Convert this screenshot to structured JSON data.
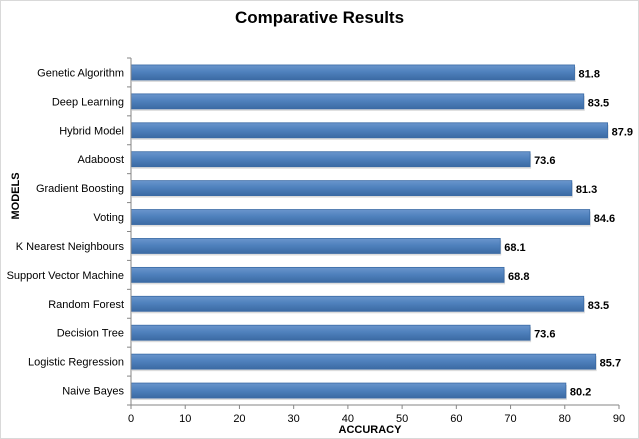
{
  "chart_data": {
    "type": "bar",
    "orientation": "horizontal",
    "title": "Comparative Results",
    "xlabel": "ACCURACY",
    "ylabel": "MODELS",
    "xlim": [
      0,
      90
    ],
    "xticks": [
      0,
      10,
      20,
      30,
      40,
      50,
      60,
      70,
      80,
      90
    ],
    "grid": false,
    "categories": [
      "Genetic Algorithm",
      "Deep Learning",
      "Hybrid Model",
      "Adaboost",
      "Gradient Boosting",
      "Voting",
      "K Nearest Neighbours",
      "Support Vector Machine",
      "Random Forest",
      "Decision Tree",
      "Logistic Regression",
      "Naive Bayes"
    ],
    "values": [
      81.8,
      83.5,
      87.9,
      73.6,
      81.3,
      84.6,
      68.1,
      68.8,
      83.5,
      73.6,
      85.7,
      80.2
    ],
    "data_labels": [
      "81.8",
      "83.5",
      "87.9",
      "73.6",
      "81.3",
      "84.6",
      "68.1",
      "68.8",
      "83.5",
      "73.6",
      "85.7",
      "80.2"
    ],
    "bar_color": "#4f81bd",
    "bar_edge_color": "#3a6aa5"
  }
}
